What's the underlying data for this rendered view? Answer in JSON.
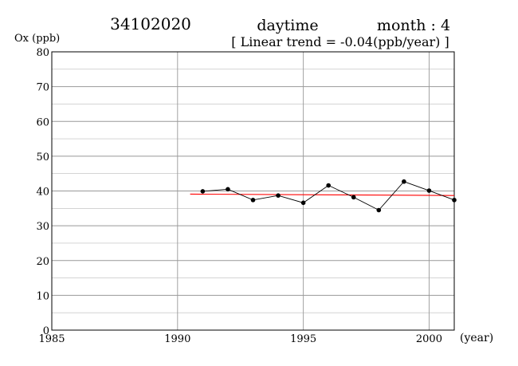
{
  "header": {
    "station": "34102020",
    "period": "daytime",
    "month": "month : 4",
    "trend": "[ Linear trend = -0.04(ppb/year) ]"
  },
  "chart_data": {
    "type": "line",
    "ylabel": "Ox (ppb)",
    "xlabel": "(year)",
    "xlim": [
      1985,
      2001
    ],
    "ylim": [
      0,
      80
    ],
    "x_ticks": [
      1985,
      1990,
      1995,
      2000
    ],
    "y_ticks": [
      0,
      10,
      20,
      30,
      40,
      50,
      60,
      70,
      80
    ],
    "grid": true,
    "series": [
      {
        "x": [
          1991,
          1992,
          1993,
          1994,
          1995,
          1996,
          1997,
          1998,
          1999,
          2000,
          2001
        ],
        "values": [
          39.9,
          40.5,
          37.4,
          38.7,
          36.6,
          41.6,
          38.2,
          34.5,
          42.7,
          40.1,
          37.4
        ],
        "color": "#000000"
      }
    ],
    "trend_line": {
      "x": [
        1990.5,
        2001
      ],
      "values": [
        39.1,
        38.7
      ],
      "color": "#ff0000"
    }
  }
}
